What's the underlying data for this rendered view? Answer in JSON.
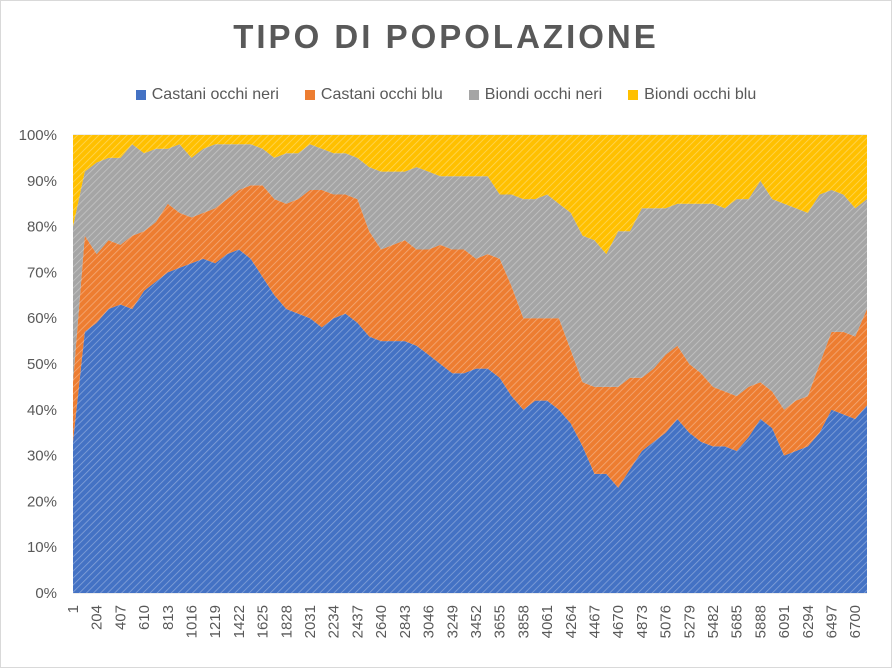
{
  "chart_data": {
    "type": "area",
    "stacked": "percent",
    "title": "TIPO DI POPOLAZIONE",
    "xlabel": "",
    "ylabel": "",
    "ylim": [
      0,
      100
    ],
    "grid": true,
    "legend_position": "top",
    "y_ticks": [
      "0%",
      "10%",
      "20%",
      "30%",
      "40%",
      "50%",
      "60%",
      "70%",
      "80%",
      "90%",
      "100%"
    ],
    "x_ticks": [
      "1",
      "204",
      "407",
      "610",
      "813",
      "1016",
      "1219",
      "1422",
      "1625",
      "1828",
      "2031",
      "2234",
      "2437",
      "2640",
      "2843",
      "3046",
      "3249",
      "3452",
      "3655",
      "3858",
      "4061",
      "4264",
      "4467",
      "4670",
      "4873",
      "5076",
      "5279",
      "5482",
      "5685",
      "5888",
      "6091",
      "6294",
      "6497",
      "6700"
    ],
    "x": [
      1,
      102,
      204,
      305,
      407,
      508,
      610,
      711,
      813,
      914,
      1016,
      1117,
      1219,
      1320,
      1422,
      1523,
      1625,
      1726,
      1828,
      1929,
      2031,
      2132,
      2234,
      2335,
      2437,
      2538,
      2640,
      2741,
      2843,
      2944,
      3046,
      3147,
      3249,
      3350,
      3452,
      3553,
      3655,
      3756,
      3858,
      3959,
      4061,
      4162,
      4264,
      4365,
      4467,
      4568,
      4670,
      4771,
      4873,
      4974,
      5076,
      5177,
      5279,
      5380,
      5482,
      5583,
      5685,
      5786,
      5888,
      5989,
      6091,
      6192,
      6294,
      6395,
      6497,
      6598,
      6700,
      6801
    ],
    "series": [
      {
        "name": "Castani occhi neri",
        "color": "#4472c4",
        "values": [
          33,
          57,
          59,
          62,
          63,
          62,
          66,
          68,
          70,
          71,
          72,
          73,
          72,
          74,
          75,
          73,
          69,
          65,
          62,
          61,
          60,
          58,
          60,
          61,
          59,
          56,
          55,
          55,
          55,
          54,
          52,
          50,
          48,
          48,
          49,
          49,
          47,
          43,
          40,
          42,
          42,
          40,
          37,
          32,
          26,
          26,
          23,
          27,
          31,
          33,
          35,
          38,
          35,
          33,
          32,
          32,
          31,
          34,
          38,
          36,
          30,
          31,
          32,
          35,
          40,
          39,
          38,
          41
        ]
      },
      {
        "name": "Castani occhi blu",
        "color": "#ed7d31",
        "values": [
          13,
          21,
          15,
          15,
          13,
          16,
          13,
          13,
          15,
          12,
          10,
          10,
          12,
          12,
          13,
          16,
          20,
          21,
          23,
          25,
          28,
          30,
          27,
          26,
          27,
          23,
          20,
          21,
          22,
          21,
          23,
          26,
          27,
          27,
          24,
          25,
          26,
          24,
          20,
          18,
          18,
          20,
          16,
          14,
          19,
          19,
          22,
          20,
          16,
          16,
          17,
          16,
          15,
          15,
          13,
          12,
          12,
          11,
          8,
          8,
          10,
          11,
          11,
          15,
          17,
          18,
          18,
          21
        ]
      },
      {
        "name": "Biondi occhi neri",
        "color": "#a5a5a5",
        "values": [
          34,
          14,
          20,
          18,
          19,
          20,
          17,
          16,
          12,
          15,
          13,
          14,
          14,
          12,
          10,
          9,
          8,
          9,
          11,
          10,
          10,
          9,
          9,
          9,
          9,
          14,
          17,
          16,
          15,
          18,
          17,
          15,
          16,
          16,
          18,
          17,
          14,
          20,
          26,
          26,
          27,
          25,
          30,
          32,
          32,
          29,
          34,
          32,
          37,
          35,
          32,
          31,
          35,
          37,
          40,
          40,
          43,
          41,
          44,
          42,
          45,
          42,
          40,
          37,
          31,
          30,
          28,
          24
        ]
      },
      {
        "name": "Biondi occhi blu",
        "color": "#ffc000",
        "values": [
          20,
          8,
          6,
          5,
          5,
          2,
          4,
          3,
          3,
          2,
          5,
          3,
          2,
          2,
          2,
          2,
          3,
          5,
          4,
          4,
          2,
          3,
          4,
          4,
          5,
          7,
          8,
          8,
          8,
          7,
          8,
          9,
          9,
          9,
          9,
          9,
          13,
          13,
          14,
          14,
          13,
          15,
          17,
          22,
          23,
          26,
          21,
          21,
          16,
          16,
          16,
          15,
          15,
          15,
          15,
          16,
          14,
          14,
          10,
          14,
          15,
          16,
          17,
          13,
          12,
          13,
          16,
          14
        ]
      }
    ]
  }
}
